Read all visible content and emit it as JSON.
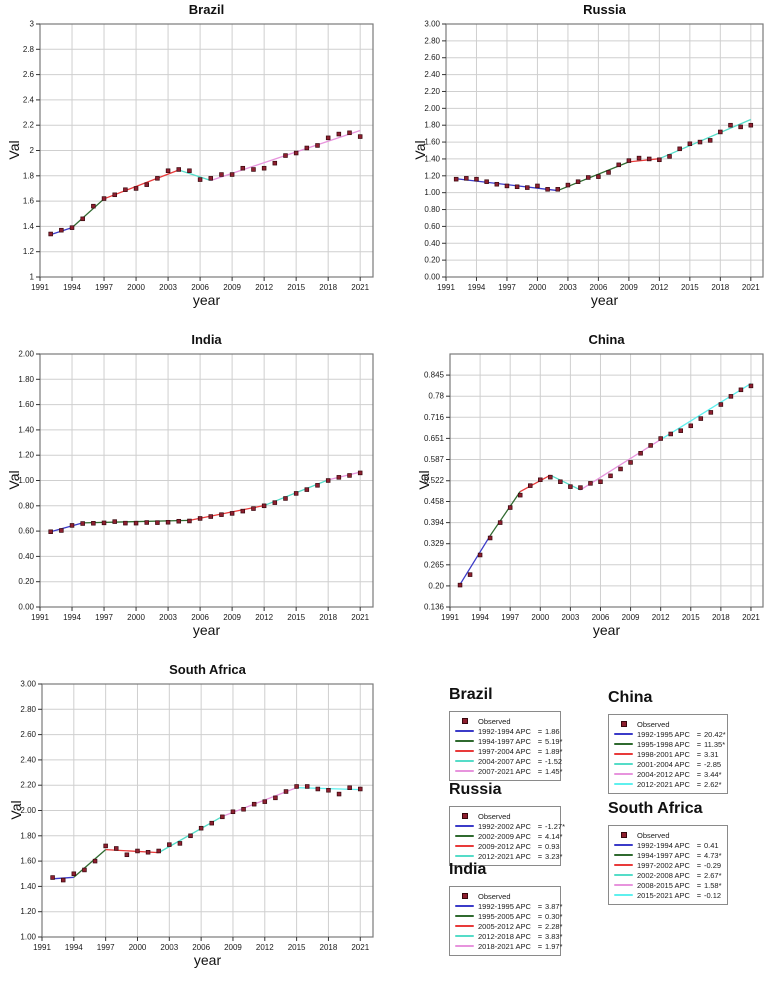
{
  "axis_labels": {
    "x": "year",
    "y": "Val"
  },
  "legend": {
    "observed_label": "Observed",
    "apc_word": "APC",
    "equals_sign": "="
  },
  "colors": {
    "background": "#ffffff",
    "grid": "#cfcfcf",
    "frame": "#7a7a7a",
    "tick": "#333333",
    "text": "#1a1a1a",
    "observed": "#8e1f2f",
    "observed_border": "#38080e",
    "segment_palette": {
      "s1": "#3b3bc8",
      "s2": "#2f6a2f",
      "s3": "#e83a3a",
      "s4": "#55dcc8",
      "s5": "#e794dd",
      "s6": "#5ff0ee"
    }
  },
  "chart_data": [
    {
      "type": "line",
      "title": "Brazil",
      "xlabel": "year",
      "ylabel": "Val",
      "xlim": [
        1991,
        2022.2
      ],
      "ylim": [
        1,
        3
      ],
      "x_ticks": [
        1991,
        1994,
        1997,
        2000,
        2003,
        2006,
        2009,
        2012,
        2015,
        2018,
        2021
      ],
      "y_ticks": [
        {
          "value": 1,
          "label": "1"
        },
        {
          "value": 1.2,
          "label": "1.2"
        },
        {
          "value": 1.4,
          "label": "1.4"
        },
        {
          "value": 1.6,
          "label": "1.6"
        },
        {
          "value": 1.8,
          "label": "1.8"
        },
        {
          "value": 2,
          "label": "2"
        },
        {
          "value": 2.2,
          "label": "2.2"
        },
        {
          "value": 2.4,
          "label": "2.4"
        },
        {
          "value": 2.6,
          "label": "2.6"
        },
        {
          "value": 2.8,
          "label": "2.8"
        },
        {
          "value": 3,
          "label": "3"
        }
      ],
      "years": [
        1992,
        1993,
        1994,
        1995,
        1996,
        1997,
        1998,
        1999,
        2000,
        2001,
        2002,
        2003,
        2004,
        2005,
        2006,
        2007,
        2008,
        2009,
        2010,
        2011,
        2012,
        2013,
        2014,
        2015,
        2016,
        2017,
        2018,
        2019,
        2020,
        2021
      ],
      "observed": [
        1.34,
        1.37,
        1.39,
        1.46,
        1.56,
        1.62,
        1.65,
        1.69,
        1.7,
        1.73,
        1.78,
        1.84,
        1.85,
        1.84,
        1.77,
        1.78,
        1.81,
        1.81,
        1.86,
        1.85,
        1.86,
        1.9,
        1.96,
        1.98,
        2.02,
        2.04,
        2.1,
        2.13,
        2.14,
        2.11
      ],
      "segments": [
        {
          "period": "1992-1994",
          "apc": "1.86",
          "color": "s1",
          "x1": 1992,
          "y1": 1.335,
          "x2": 1994,
          "y2": 1.39
        },
        {
          "period": "1994-1997",
          "apc": "5.19*",
          "color": "s2",
          "x1": 1994,
          "y1": 1.39,
          "x2": 1997,
          "y2": 1.618
        },
        {
          "period": "1997-2004",
          "apc": "1.89*",
          "color": "s3",
          "x1": 1997,
          "y1": 1.618,
          "x2": 2004,
          "y2": 1.846
        },
        {
          "period": "2004-2007",
          "apc": "-1.52",
          "color": "s4",
          "x1": 2004,
          "y1": 1.846,
          "x2": 2007,
          "y2": 1.763
        },
        {
          "period": "2007-2021",
          "apc": "1.45*",
          "color": "s5",
          "x1": 2007,
          "y1": 1.763,
          "x2": 2021,
          "y2": 2.158
        }
      ]
    },
    {
      "type": "line",
      "title": "Russia",
      "xlabel": "year",
      "ylabel": "Val",
      "xlim": [
        1991,
        2022.2
      ],
      "ylim": [
        0,
        3
      ],
      "x_ticks": [
        1991,
        1994,
        1997,
        2000,
        2003,
        2006,
        2009,
        2012,
        2015,
        2018,
        2021
      ],
      "y_ticks": [
        {
          "value": 0,
          "label": "0.00"
        },
        {
          "value": 0.2,
          "label": "0.20"
        },
        {
          "value": 0.4,
          "label": "0.40"
        },
        {
          "value": 0.6,
          "label": "0.60"
        },
        {
          "value": 0.8,
          "label": "0.80"
        },
        {
          "value": 1,
          "label": "1.00"
        },
        {
          "value": 1.2,
          "label": "1.20"
        },
        {
          "value": 1.4,
          "label": "1.40"
        },
        {
          "value": 1.6,
          "label": "1.60"
        },
        {
          "value": 1.8,
          "label": "1.80"
        },
        {
          "value": 2,
          "label": "2.00"
        },
        {
          "value": 2.2,
          "label": "2.20"
        },
        {
          "value": 2.4,
          "label": "2.40"
        },
        {
          "value": 2.6,
          "label": "2.60"
        },
        {
          "value": 2.8,
          "label": "2.80"
        },
        {
          "value": 3,
          "label": "3.00"
        }
      ],
      "years": [
        1992,
        1993,
        1994,
        1995,
        1996,
        1997,
        1998,
        1999,
        2000,
        2001,
        2002,
        2003,
        2004,
        2005,
        2006,
        2007,
        2008,
        2009,
        2010,
        2011,
        2012,
        2013,
        2014,
        2015,
        2016,
        2017,
        2018,
        2019,
        2020,
        2021
      ],
      "observed": [
        1.16,
        1.17,
        1.16,
        1.13,
        1.1,
        1.08,
        1.07,
        1.06,
        1.08,
        1.04,
        1.04,
        1.09,
        1.13,
        1.18,
        1.19,
        1.24,
        1.33,
        1.38,
        1.41,
        1.4,
        1.39,
        1.43,
        1.52,
        1.58,
        1.6,
        1.62,
        1.72,
        1.8,
        1.78,
        1.8
      ],
      "segments": [
        {
          "period": "1992-2002",
          "apc": "-1.27*",
          "color": "s1",
          "x1": 1992,
          "y1": 1.165,
          "x2": 2002,
          "y2": 1.025
        },
        {
          "period": "2002-2009",
          "apc": "4.14*",
          "color": "s2",
          "x1": 2002,
          "y1": 1.025,
          "x2": 2009,
          "y2": 1.365
        },
        {
          "period": "2009-2012",
          "apc": "0.93",
          "color": "s3",
          "x1": 2009,
          "y1": 1.365,
          "x2": 2012,
          "y2": 1.403
        },
        {
          "period": "2012-2021",
          "apc": "3.23*",
          "color": "s4",
          "x1": 2012,
          "y1": 1.403,
          "x2": 2021,
          "y2": 1.868
        }
      ]
    },
    {
      "type": "line",
      "title": "India",
      "xlabel": "year",
      "ylabel": "Val",
      "xlim": [
        1991,
        2022.2
      ],
      "ylim": [
        0,
        2
      ],
      "x_ticks": [
        1991,
        1994,
        1997,
        2000,
        2003,
        2006,
        2009,
        2012,
        2015,
        2018,
        2021
      ],
      "y_ticks": [
        {
          "value": 0,
          "label": "0.00"
        },
        {
          "value": 0.2,
          "label": "0.20"
        },
        {
          "value": 0.4,
          "label": "0.40"
        },
        {
          "value": 0.6,
          "label": "0.60"
        },
        {
          "value": 0.8,
          "label": "0.80"
        },
        {
          "value": 1,
          "label": "1.00"
        },
        {
          "value": 1.2,
          "label": "1.20"
        },
        {
          "value": 1.4,
          "label": "1.40"
        },
        {
          "value": 1.6,
          "label": "1.60"
        },
        {
          "value": 1.8,
          "label": "1.80"
        },
        {
          "value": 2,
          "label": "2.00"
        }
      ],
      "years": [
        1992,
        1993,
        1994,
        1995,
        1996,
        1997,
        1998,
        1999,
        2000,
        2001,
        2002,
        2003,
        2004,
        2005,
        2006,
        2007,
        2008,
        2009,
        2010,
        2011,
        2012,
        2013,
        2014,
        2015,
        2016,
        2017,
        2018,
        2019,
        2020,
        2021
      ],
      "observed": [
        0.595,
        0.605,
        0.645,
        0.66,
        0.662,
        0.665,
        0.675,
        0.663,
        0.663,
        0.668,
        0.667,
        0.67,
        0.678,
        0.68,
        0.7,
        0.715,
        0.73,
        0.74,
        0.758,
        0.778,
        0.8,
        0.825,
        0.858,
        0.898,
        0.928,
        0.962,
        1.0,
        1.025,
        1.04,
        1.06
      ],
      "segments": [
        {
          "period": "1992-1995",
          "apc": "3.87*",
          "color": "s1",
          "x1": 1992,
          "y1": 0.595,
          "x2": 1995,
          "y2": 0.665
        },
        {
          "period": "1995-2005",
          "apc": "0.30*",
          "color": "s2",
          "x1": 1995,
          "y1": 0.665,
          "x2": 2005,
          "y2": 0.685
        },
        {
          "period": "2005-2012",
          "apc": "2.28*",
          "color": "s3",
          "x1": 2005,
          "y1": 0.685,
          "x2": 2012,
          "y2": 0.802
        },
        {
          "period": "2012-2018",
          "apc": "3.83*",
          "color": "s4",
          "x1": 2012,
          "y1": 0.802,
          "x2": 2018,
          "y2": 1.005
        },
        {
          "period": "2018-2021",
          "apc": "1.97*",
          "color": "s5",
          "x1": 2018,
          "y1": 1.005,
          "x2": 2021,
          "y2": 1.066
        }
      ]
    },
    {
      "type": "line",
      "title": "China",
      "xlabel": "year",
      "ylabel": "Val",
      "xlim": [
        1991,
        2022.2
      ],
      "ylim": [
        0.136,
        0.9095
      ],
      "x_ticks": [
        1991,
        1994,
        1997,
        2000,
        2003,
        2006,
        2009,
        2012,
        2015,
        2018,
        2021
      ],
      "y_ticks": [
        {
          "value": 0.136,
          "label": "0.136"
        },
        {
          "value": 0.2005,
          "label": "0.20"
        },
        {
          "value": 0.265,
          "label": "0.265"
        },
        {
          "value": 0.3295,
          "label": "0.329"
        },
        {
          "value": 0.394,
          "label": "0.394"
        },
        {
          "value": 0.4585,
          "label": "0.458"
        },
        {
          "value": 0.522,
          "label": "0.522"
        },
        {
          "value": 0.587,
          "label": "0.587"
        },
        {
          "value": 0.6515,
          "label": "0.651"
        },
        {
          "value": 0.716,
          "label": "0.716"
        },
        {
          "value": 0.7805,
          "label": "0.78"
        },
        {
          "value": 0.845,
          "label": "0.845"
        }
      ],
      "years": [
        1992,
        1993,
        1994,
        1995,
        1996,
        1997,
        1998,
        1999,
        2000,
        2001,
        2002,
        2003,
        2004,
        2005,
        2006,
        2007,
        2008,
        2009,
        2010,
        2011,
        2012,
        2013,
        2014,
        2015,
        2016,
        2017,
        2018,
        2019,
        2020,
        2021
      ],
      "observed": [
        0.203,
        0.235,
        0.295,
        0.347,
        0.394,
        0.44,
        0.478,
        0.507,
        0.525,
        0.533,
        0.519,
        0.504,
        0.501,
        0.514,
        0.519,
        0.537,
        0.558,
        0.578,
        0.606,
        0.63,
        0.651,
        0.665,
        0.675,
        0.69,
        0.712,
        0.731,
        0.755,
        0.78,
        0.8,
        0.812
      ],
      "segments": [
        {
          "period": "1992-1995",
          "apc": "20.42*",
          "color": "s1",
          "x1": 1992,
          "y1": 0.205,
          "x2": 1995,
          "y2": 0.354
        },
        {
          "period": "1995-1998",
          "apc": "11.35*",
          "color": "s2",
          "x1": 1995,
          "y1": 0.354,
          "x2": 1998,
          "y2": 0.489
        },
        {
          "period": "1998-2001",
          "apc": "3.31",
          "color": "s3",
          "x1": 1998,
          "y1": 0.489,
          "x2": 2001,
          "y2": 0.539
        },
        {
          "period": "2001-2004",
          "apc": "-2.85",
          "color": "s4",
          "x1": 2001,
          "y1": 0.539,
          "x2": 2004,
          "y2": 0.494
        },
        {
          "period": "2004-2012",
          "apc": "3.44*",
          "color": "s5",
          "x1": 2004,
          "y1": 0.494,
          "x2": 2012,
          "y2": 0.648
        },
        {
          "period": "2012-2021",
          "apc": "2.62*",
          "color": "s6",
          "x1": 2012,
          "y1": 0.648,
          "x2": 2021,
          "y2": 0.819
        }
      ]
    },
    {
      "type": "line",
      "title": "South Africa",
      "xlabel": "year",
      "ylabel": "Val",
      "xlim": [
        1991,
        2022.2
      ],
      "ylim": [
        1,
        3
      ],
      "x_ticks": [
        1991,
        1994,
        1997,
        2000,
        2003,
        2006,
        2009,
        2012,
        2015,
        2018,
        2021
      ],
      "y_ticks": [
        {
          "value": 1,
          "label": "1.00"
        },
        {
          "value": 1.2,
          "label": "1.20"
        },
        {
          "value": 1.4,
          "label": "1.40"
        },
        {
          "value": 1.6,
          "label": "1.60"
        },
        {
          "value": 1.8,
          "label": "1.80"
        },
        {
          "value": 2,
          "label": "2.00"
        },
        {
          "value": 2.2,
          "label": "2.20"
        },
        {
          "value": 2.4,
          "label": "2.40"
        },
        {
          "value": 2.6,
          "label": "2.60"
        },
        {
          "value": 2.8,
          "label": "2.80"
        },
        {
          "value": 3,
          "label": "3.00"
        }
      ],
      "years": [
        1992,
        1993,
        1994,
        1995,
        1996,
        1997,
        1998,
        1999,
        2000,
        2001,
        2002,
        2003,
        2004,
        2005,
        2006,
        2007,
        2008,
        2009,
        2010,
        2011,
        2012,
        2013,
        2014,
        2015,
        2016,
        2017,
        2018,
        2019,
        2020,
        2021
      ],
      "observed": [
        1.47,
        1.45,
        1.5,
        1.53,
        1.6,
        1.72,
        1.7,
        1.65,
        1.68,
        1.67,
        1.68,
        1.73,
        1.74,
        1.8,
        1.86,
        1.9,
        1.95,
        1.99,
        2.01,
        2.05,
        2.07,
        2.1,
        2.15,
        2.19,
        2.19,
        2.17,
        2.16,
        2.13,
        2.18,
        2.17
      ],
      "segments": [
        {
          "period": "1992-1994",
          "apc": "0.41",
          "color": "s1",
          "x1": 1992,
          "y1": 1.46,
          "x2": 1994,
          "y2": 1.472
        },
        {
          "period": "1994-1997",
          "apc": "4.73*",
          "color": "s2",
          "x1": 1994,
          "y1": 1.472,
          "x2": 1997,
          "y2": 1.691
        },
        {
          "period": "1997-2002",
          "apc": "-0.29",
          "color": "s3",
          "x1": 1997,
          "y1": 1.691,
          "x2": 2002,
          "y2": 1.667
        },
        {
          "period": "2002-2008",
          "apc": "2.67*",
          "color": "s4",
          "x1": 2002,
          "y1": 1.667,
          "x2": 2008,
          "y2": 1.953
        },
        {
          "period": "2008-2015",
          "apc": "1.58*",
          "color": "s5",
          "x1": 2008,
          "y1": 1.953,
          "x2": 2015,
          "y2": 2.181
        },
        {
          "period": "2015-2021",
          "apc": "-0.12",
          "color": "s6",
          "x1": 2015,
          "y1": 2.181,
          "x2": 2021,
          "y2": 2.165
        }
      ]
    }
  ]
}
